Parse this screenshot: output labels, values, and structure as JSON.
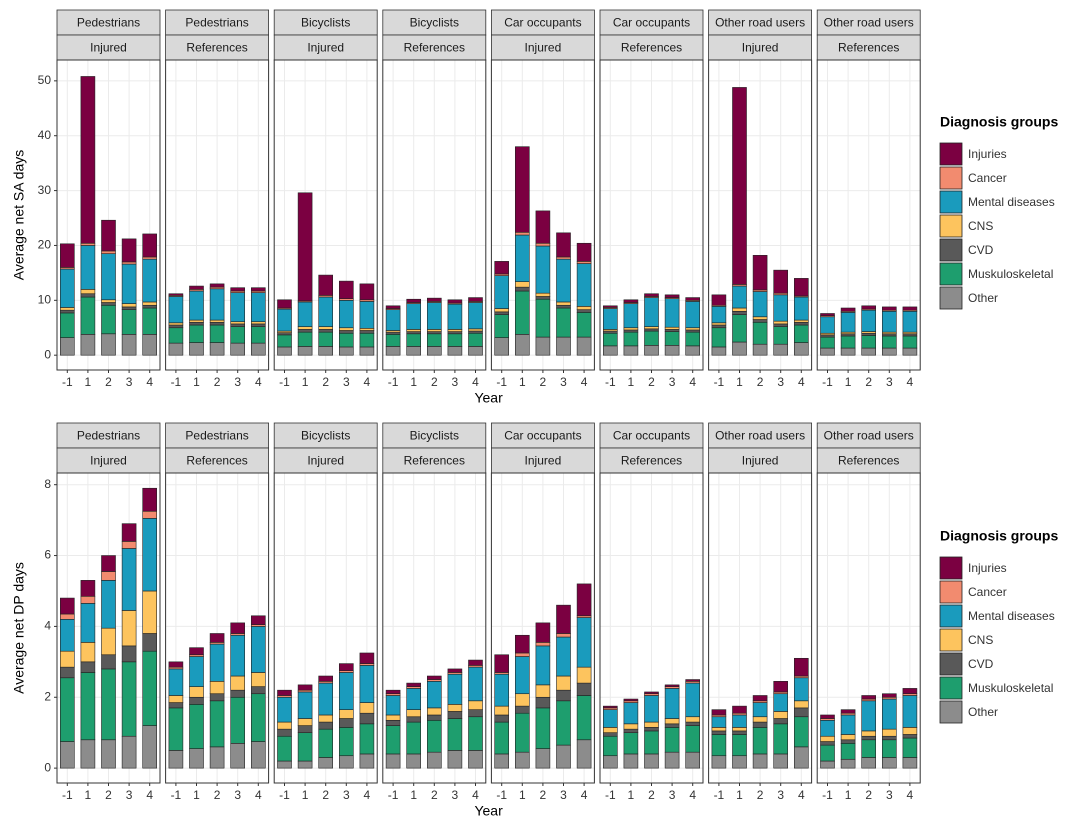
{
  "chart_data": [
    {
      "type": "bar",
      "stacked": true,
      "ylabel": "Average net SA days",
      "xlabel": "Year",
      "legend_title": "Diagnosis groups",
      "categories": [
        "-1",
        "1",
        "2",
        "3",
        "4"
      ],
      "ylim": [
        -2.7,
        53.8
      ],
      "yticks": [
        0,
        10,
        20,
        30,
        40,
        50
      ],
      "grid": true,
      "series": [
        {
          "name": "Other",
          "color": "#8c8c8c"
        },
        {
          "name": "Muskuloskeletal",
          "color": "#1e9e6e"
        },
        {
          "name": "CVD",
          "color": "#595959"
        },
        {
          "name": "CNS",
          "color": "#fdc45e"
        },
        {
          "name": "Mental diseases",
          "color": "#1a9bbd"
        },
        {
          "name": "Cancer",
          "color": "#f28b6f"
        },
        {
          "name": "Injuries",
          "color": "#7b0041"
        }
      ],
      "panels": [
        {
          "strips": [
            "Pedestrians",
            "Injured"
          ],
          "values": [
            [
              3.2,
              4.5,
              0.5,
              0.5,
              7.0,
              0.3,
              4.3
            ],
            [
              3.8,
              6.8,
              0.6,
              0.8,
              8.0,
              0.4,
              30.4
            ],
            [
              3.9,
              5.2,
              0.5,
              0.5,
              8.4,
              0.5,
              5.6
            ],
            [
              3.8,
              4.5,
              0.5,
              0.6,
              7.2,
              0.4,
              4.2
            ],
            [
              3.8,
              4.8,
              0.5,
              0.6,
              7.8,
              0.4,
              4.2
            ]
          ]
        },
        {
          "strips": [
            "Pedestrians",
            "References"
          ],
          "values": [
            [
              2.2,
              2.8,
              0.5,
              0.4,
              4.8,
              0.2,
              0.3
            ],
            [
              2.3,
              3.2,
              0.5,
              0.4,
              5.3,
              0.3,
              0.6
            ],
            [
              2.3,
              3.2,
              0.5,
              0.4,
              5.7,
              0.3,
              0.6
            ],
            [
              2.2,
              3.0,
              0.5,
              0.4,
              5.3,
              0.3,
              0.6
            ],
            [
              2.2,
              3.0,
              0.5,
              0.4,
              5.3,
              0.3,
              0.6
            ]
          ]
        },
        {
          "strips": [
            "Bicyclists",
            "Injured"
          ],
          "values": [
            [
              1.5,
              2.2,
              0.4,
              0.3,
              4.0,
              0.2,
              1.5
            ],
            [
              1.6,
              2.6,
              0.5,
              0.5,
              4.5,
              0.2,
              19.7
            ],
            [
              1.6,
              2.6,
              0.5,
              0.5,
              5.4,
              0.3,
              3.7
            ],
            [
              1.5,
              2.5,
              0.5,
              0.5,
              5.0,
              0.3,
              3.2
            ],
            [
              1.5,
              2.5,
              0.5,
              0.4,
              4.9,
              0.3,
              2.9
            ]
          ]
        },
        {
          "strips": [
            "Bicyclists",
            "References"
          ],
          "values": [
            [
              1.6,
              2.2,
              0.4,
              0.3,
              3.8,
              0.2,
              0.5
            ],
            [
              1.6,
              2.3,
              0.4,
              0.4,
              4.7,
              0.2,
              0.6
            ],
            [
              1.6,
              2.3,
              0.4,
              0.4,
              4.9,
              0.2,
              0.6
            ],
            [
              1.6,
              2.3,
              0.4,
              0.4,
              4.6,
              0.2,
              0.6
            ],
            [
              1.6,
              2.4,
              0.4,
              0.4,
              4.8,
              0.2,
              0.7
            ]
          ]
        },
        {
          "strips": [
            "Car occupants",
            "Injured"
          ],
          "values": [
            [
              3.2,
              4.2,
              0.5,
              0.6,
              6.0,
              0.3,
              2.3
            ],
            [
              3.8,
              7.9,
              0.7,
              1.0,
              8.5,
              0.5,
              15.6
            ],
            [
              3.3,
              6.9,
              0.5,
              0.6,
              8.6,
              0.5,
              5.9
            ],
            [
              3.3,
              5.3,
              0.5,
              0.6,
              7.8,
              0.4,
              4.4
            ],
            [
              3.3,
              4.5,
              0.5,
              0.6,
              7.8,
              0.4,
              3.3
            ]
          ]
        },
        {
          "strips": [
            "Car occupants",
            "References"
          ],
          "values": [
            [
              1.7,
              2.3,
              0.4,
              0.3,
              3.8,
              0.2,
              0.3
            ],
            [
              1.7,
              2.5,
              0.4,
              0.4,
              4.4,
              0.2,
              0.5
            ],
            [
              1.8,
              2.6,
              0.4,
              0.4,
              5.3,
              0.2,
              0.5
            ],
            [
              1.8,
              2.5,
              0.4,
              0.4,
              5.2,
              0.2,
              0.5
            ],
            [
              1.7,
              2.5,
              0.4,
              0.4,
              4.8,
              0.2,
              0.5
            ]
          ]
        },
        {
          "strips": [
            "Other road users",
            "Injured"
          ],
          "values": [
            [
              1.5,
              3.5,
              0.5,
              0.4,
              3.0,
              0.2,
              1.9
            ],
            [
              2.4,
              5.0,
              0.6,
              0.6,
              4.0,
              0.3,
              35.9
            ],
            [
              2.0,
              4.0,
              0.5,
              0.5,
              4.6,
              0.3,
              6.3
            ],
            [
              2.0,
              3.2,
              0.5,
              0.5,
              4.8,
              0.3,
              4.2
            ],
            [
              2.3,
              3.2,
              0.5,
              0.4,
              4.2,
              0.2,
              3.2
            ]
          ]
        },
        {
          "strips": [
            "Other road users",
            "References"
          ],
          "values": [
            [
              1.3,
              2.0,
              0.4,
              0.3,
              3.0,
              0.2,
              0.4
            ],
            [
              1.3,
              2.2,
              0.4,
              0.3,
              3.6,
              0.2,
              0.6
            ],
            [
              1.3,
              2.3,
              0.4,
              0.3,
              3.9,
              0.2,
              0.6
            ],
            [
              1.3,
              2.2,
              0.4,
              0.3,
              3.8,
              0.2,
              0.6
            ],
            [
              1.3,
              2.2,
              0.4,
              0.3,
              3.8,
              0.2,
              0.6
            ]
          ]
        }
      ]
    },
    {
      "type": "bar",
      "stacked": true,
      "ylabel": "Average net DP days",
      "xlabel": "Year",
      "legend_title": "Diagnosis groups",
      "categories": [
        "-1",
        "1",
        "2",
        "3",
        "4"
      ],
      "ylim": [
        -0.42,
        8.33
      ],
      "yticks": [
        0,
        2,
        4,
        6,
        8
      ],
      "grid": true,
      "series": [
        {
          "name": "Other",
          "color": "#8c8c8c"
        },
        {
          "name": "Muskuloskeletal",
          "color": "#1e9e6e"
        },
        {
          "name": "CVD",
          "color": "#595959"
        },
        {
          "name": "CNS",
          "color": "#fdc45e"
        },
        {
          "name": "Mental diseases",
          "color": "#1a9bbd"
        },
        {
          "name": "Cancer",
          "color": "#f28b6f"
        },
        {
          "name": "Injuries",
          "color": "#7b0041"
        }
      ],
      "panels": [
        {
          "strips": [
            "Pedestrians",
            "Injured"
          ],
          "values": [
            [
              0.75,
              1.8,
              0.3,
              0.45,
              0.9,
              0.15,
              0.45
            ],
            [
              0.8,
              1.9,
              0.3,
              0.55,
              1.1,
              0.2,
              0.45
            ],
            [
              0.8,
              2.0,
              0.4,
              0.75,
              1.35,
              0.25,
              0.45
            ],
            [
              0.9,
              2.1,
              0.45,
              1.0,
              1.75,
              0.2,
              0.5
            ],
            [
              1.2,
              2.1,
              0.5,
              1.2,
              2.05,
              0.2,
              0.65
            ]
          ]
        },
        {
          "strips": [
            "Pedestrians",
            "References"
          ],
          "values": [
            [
              0.5,
              1.2,
              0.15,
              0.2,
              0.75,
              0.05,
              0.15
            ],
            [
              0.55,
              1.25,
              0.2,
              0.3,
              0.85,
              0.05,
              0.2
            ],
            [
              0.6,
              1.3,
              0.2,
              0.35,
              1.05,
              0.05,
              0.25
            ],
            [
              0.7,
              1.3,
              0.2,
              0.4,
              1.15,
              0.05,
              0.3
            ],
            [
              0.75,
              1.35,
              0.2,
              0.4,
              1.3,
              0.05,
              0.25
            ]
          ]
        },
        {
          "strips": [
            "Bicyclists",
            "Injured"
          ],
          "values": [
            [
              0.2,
              0.7,
              0.2,
              0.2,
              0.7,
              0.05,
              0.15
            ],
            [
              0.2,
              0.8,
              0.2,
              0.2,
              0.75,
              0.05,
              0.15
            ],
            [
              0.3,
              0.8,
              0.2,
              0.2,
              0.9,
              0.05,
              0.15
            ],
            [
              0.35,
              0.8,
              0.25,
              0.25,
              1.05,
              0.05,
              0.2
            ],
            [
              0.4,
              0.85,
              0.3,
              0.3,
              1.05,
              0.05,
              0.3
            ]
          ]
        },
        {
          "strips": [
            "Bicyclists",
            "References"
          ],
          "values": [
            [
              0.4,
              0.8,
              0.15,
              0.15,
              0.55,
              0.05,
              0.1
            ],
            [
              0.4,
              0.9,
              0.15,
              0.2,
              0.6,
              0.05,
              0.1
            ],
            [
              0.45,
              0.9,
              0.15,
              0.2,
              0.75,
              0.05,
              0.1
            ],
            [
              0.5,
              0.9,
              0.2,
              0.2,
              0.85,
              0.05,
              0.1
            ],
            [
              0.5,
              0.95,
              0.2,
              0.25,
              0.95,
              0.05,
              0.15
            ]
          ]
        },
        {
          "strips": [
            "Car occupants",
            "Injured"
          ],
          "values": [
            [
              0.4,
              0.9,
              0.2,
              0.25,
              0.9,
              0.05,
              0.5
            ],
            [
              0.45,
              1.1,
              0.2,
              0.35,
              1.05,
              0.1,
              0.5
            ],
            [
              0.55,
              1.15,
              0.3,
              0.35,
              1.1,
              0.1,
              0.55
            ],
            [
              0.65,
              1.25,
              0.3,
              0.4,
              1.1,
              0.1,
              0.8
            ],
            [
              0.8,
              1.25,
              0.35,
              0.45,
              1.4,
              0.05,
              0.9
            ]
          ]
        },
        {
          "strips": [
            "Car occupants",
            "References"
          ],
          "values": [
            [
              0.35,
              0.55,
              0.1,
              0.15,
              0.5,
              0.05,
              0.05
            ],
            [
              0.4,
              0.6,
              0.1,
              0.15,
              0.6,
              0.05,
              0.05
            ],
            [
              0.4,
              0.65,
              0.1,
              0.15,
              0.75,
              0.05,
              0.05
            ],
            [
              0.45,
              0.7,
              0.1,
              0.15,
              0.85,
              0.05,
              0.05
            ],
            [
              0.45,
              0.75,
              0.1,
              0.15,
              0.95,
              0.05,
              0.05
            ]
          ]
        },
        {
          "strips": [
            "Other road users",
            "Injured"
          ],
          "values": [
            [
              0.35,
              0.6,
              0.1,
              0.1,
              0.3,
              0.05,
              0.15
            ],
            [
              0.35,
              0.6,
              0.1,
              0.1,
              0.35,
              0.05,
              0.2
            ],
            [
              0.4,
              0.75,
              0.15,
              0.15,
              0.4,
              0.05,
              0.15
            ],
            [
              0.4,
              0.85,
              0.15,
              0.2,
              0.5,
              0.05,
              0.3
            ],
            [
              0.6,
              0.85,
              0.25,
              0.2,
              0.65,
              0.05,
              0.5
            ]
          ]
        },
        {
          "strips": [
            "Other road users",
            "References"
          ],
          "values": [
            [
              0.2,
              0.45,
              0.1,
              0.15,
              0.45,
              0.05,
              0.1
            ],
            [
              0.25,
              0.45,
              0.1,
              0.15,
              0.55,
              0.05,
              0.1
            ],
            [
              0.3,
              0.5,
              0.1,
              0.15,
              0.85,
              0.05,
              0.1
            ],
            [
              0.3,
              0.5,
              0.1,
              0.2,
              0.85,
              0.05,
              0.1
            ],
            [
              0.3,
              0.55,
              0.1,
              0.2,
              0.9,
              0.05,
              0.15
            ]
          ]
        }
      ]
    }
  ]
}
